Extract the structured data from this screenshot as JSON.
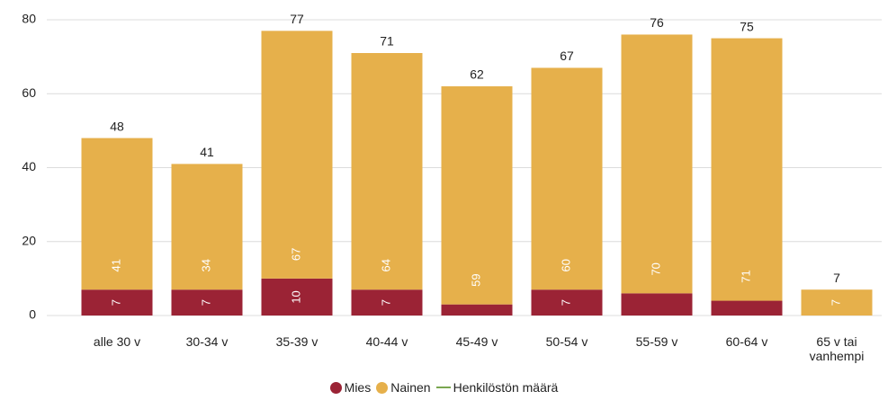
{
  "chart_data": {
    "type": "stacked_bar",
    "categories": [
      "alle 30 v",
      "30-34 v",
      "35-39 v",
      "40-44 v",
      "45-49 v",
      "50-54 v",
      "55-59 v",
      "60-64 v",
      "65 v tai vanhempi"
    ],
    "series": [
      {
        "name": "Mies",
        "color": "#9b2335",
        "values": [
          7,
          7,
          10,
          7,
          3,
          7,
          6,
          4,
          0
        ],
        "value_labels": [
          "7",
          "7",
          "10",
          "7",
          null,
          "7",
          null,
          null,
          null
        ]
      },
      {
        "name": "Nainen",
        "color": "#e6b04b",
        "values": [
          41,
          34,
          67,
          64,
          59,
          60,
          70,
          71,
          7
        ]
      },
      {
        "name": "Henkilöstön määrä",
        "type": "line",
        "color": "#7aa650",
        "values": [
          48,
          41,
          77,
          71,
          62,
          67,
          76,
          75,
          7
        ]
      }
    ],
    "ylim": [
      0,
      80
    ],
    "yticks": [
      0,
      20,
      40,
      60,
      80
    ],
    "grid": true,
    "legend": "bottom"
  }
}
